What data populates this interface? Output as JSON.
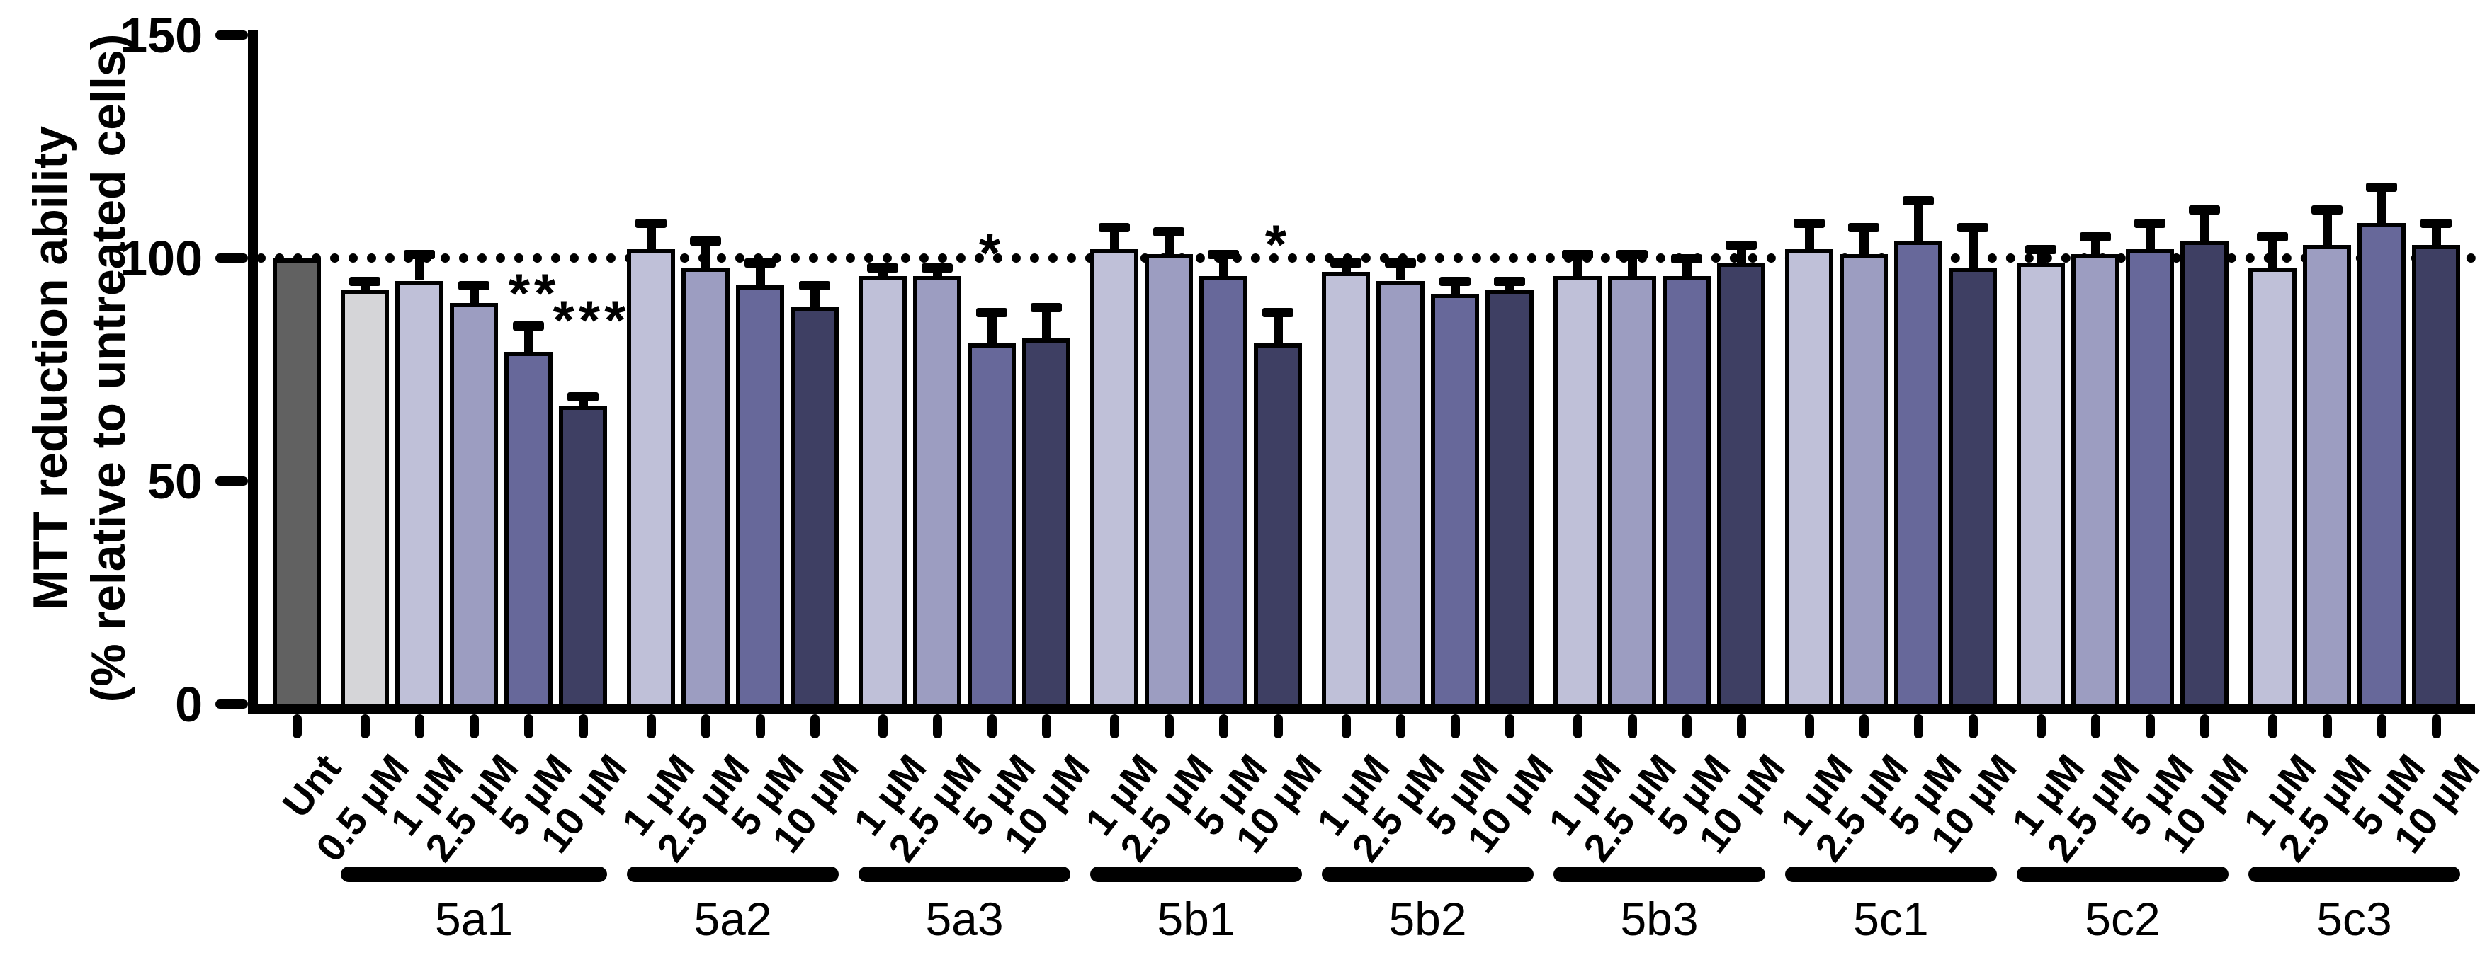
{
  "chart_data": {
    "type": "bar",
    "title": "",
    "ylabel_line1": "MTT reduction ability",
    "ylabel_line2": "(% relative to untreated cells)",
    "xlabel": "",
    "ylim": [
      0,
      150
    ],
    "yticks": [
      0,
      50,
      100,
      150
    ],
    "reference_line_y": 100,
    "grid": false,
    "legend": false,
    "error_bars": "upper",
    "bar_colors": {
      "unt": "#616161",
      "0.5 µM": "#d5d5d8",
      "1 µM": "#bfc0d8",
      "2.5 µM": "#9c9dc1",
      "5 µM": "#67689a",
      "10 µM": "#3e3f63"
    },
    "groups": [
      {
        "name": "",
        "bars": [
          {
            "label": "Unt",
            "value": 100,
            "err": 0,
            "color": "unt"
          }
        ]
      },
      {
        "name": "5a1",
        "bars": [
          {
            "label": "0.5 µM",
            "value": 93,
            "err": 2,
            "color": "0.5 µM"
          },
          {
            "label": "1 µM",
            "value": 95,
            "err": 6,
            "color": "1 µM"
          },
          {
            "label": "2.5 µM",
            "value": 90,
            "err": 4,
            "color": "2.5 µM"
          },
          {
            "label": "5 µM",
            "value": 79,
            "err": 6,
            "color": "5 µM",
            "stars": "**",
            "stars_dx": 8,
            "stars_y": 93
          },
          {
            "label": "10 µM",
            "value": 67,
            "err": 2,
            "color": "10 µM",
            "stars": "***",
            "stars_dx": 12,
            "stars_y": 87
          }
        ]
      },
      {
        "name": "5a2",
        "bars": [
          {
            "label": "1 µM",
            "value": 102,
            "err": 6,
            "color": "1 µM"
          },
          {
            "label": "2.5 µM",
            "value": 98,
            "err": 6,
            "color": "2.5 µM"
          },
          {
            "label": "5 µM",
            "value": 94,
            "err": 5,
            "color": "5 µM"
          },
          {
            "label": "10 µM",
            "value": 89,
            "err": 5,
            "color": "10 µM"
          }
        ]
      },
      {
        "name": "5a3",
        "bars": [
          {
            "label": "1 µM",
            "value": 96,
            "err": 2,
            "color": "1 µM"
          },
          {
            "label": "2.5 µM",
            "value": 96,
            "err": 2,
            "color": "2.5 µM"
          },
          {
            "label": "5 µM",
            "value": 81,
            "err": 7,
            "color": "5 µM",
            "stars": "*",
            "stars_dx": 0,
            "stars_y": 102
          },
          {
            "label": "10 µM",
            "value": 82,
            "err": 7,
            "color": "10 µM"
          }
        ]
      },
      {
        "name": "5b1",
        "bars": [
          {
            "label": "1 µM",
            "value": 102,
            "err": 5,
            "color": "1 µM"
          },
          {
            "label": "2.5 µM",
            "value": 101,
            "err": 5,
            "color": "2.5 µM"
          },
          {
            "label": "5 µM",
            "value": 96,
            "err": 5,
            "color": "5 µM"
          },
          {
            "label": "10 µM",
            "value": 81,
            "err": 7,
            "color": "10 µM",
            "stars": "*",
            "stars_dx": 0,
            "stars_y": 104
          }
        ]
      },
      {
        "name": "5b2",
        "bars": [
          {
            "label": "1 µM",
            "value": 97,
            "err": 2,
            "color": "1 µM"
          },
          {
            "label": "2.5 µM",
            "value": 95,
            "err": 4,
            "color": "2.5 µM"
          },
          {
            "label": "5 µM",
            "value": 92,
            "err": 3,
            "color": "5 µM"
          },
          {
            "label": "10 µM",
            "value": 93,
            "err": 2,
            "color": "10 µM"
          }
        ]
      },
      {
        "name": "5b3",
        "bars": [
          {
            "label": "1 µM",
            "value": 96,
            "err": 5,
            "color": "1 µM"
          },
          {
            "label": "2.5 µM",
            "value": 96,
            "err": 5,
            "color": "2.5 µM"
          },
          {
            "label": "5 µM",
            "value": 96,
            "err": 4,
            "color": "5 µM"
          },
          {
            "label": "10 µM",
            "value": 99,
            "err": 4,
            "color": "10 µM"
          }
        ]
      },
      {
        "name": "5c1",
        "bars": [
          {
            "label": "1 µM",
            "value": 102,
            "err": 6,
            "color": "1 µM"
          },
          {
            "label": "2.5 µM",
            "value": 101,
            "err": 6,
            "color": "2.5 µM"
          },
          {
            "label": "5 µM",
            "value": 104,
            "err": 9,
            "color": "5 µM"
          },
          {
            "label": "10 µM",
            "value": 98,
            "err": 9,
            "color": "10 µM"
          }
        ]
      },
      {
        "name": "5c2",
        "bars": [
          {
            "label": "1 µM",
            "value": 99,
            "err": 3,
            "color": "1 µM"
          },
          {
            "label": "2.5 µM",
            "value": 101,
            "err": 4,
            "color": "2.5 µM"
          },
          {
            "label": "5 µM",
            "value": 102,
            "err": 6,
            "color": "5 µM"
          },
          {
            "label": "10 µM",
            "value": 104,
            "err": 7,
            "color": "10 µM"
          }
        ]
      },
      {
        "name": "5c3",
        "bars": [
          {
            "label": "1 µM",
            "value": 98,
            "err": 7,
            "color": "1 µM"
          },
          {
            "label": "2.5 µM",
            "value": 103,
            "err": 8,
            "color": "2.5 µM"
          },
          {
            "label": "5 µM",
            "value": 108,
            "err": 8,
            "color": "5 µM"
          },
          {
            "label": "10 µM",
            "value": 103,
            "err": 5,
            "color": "10 µM"
          }
        ]
      }
    ]
  }
}
